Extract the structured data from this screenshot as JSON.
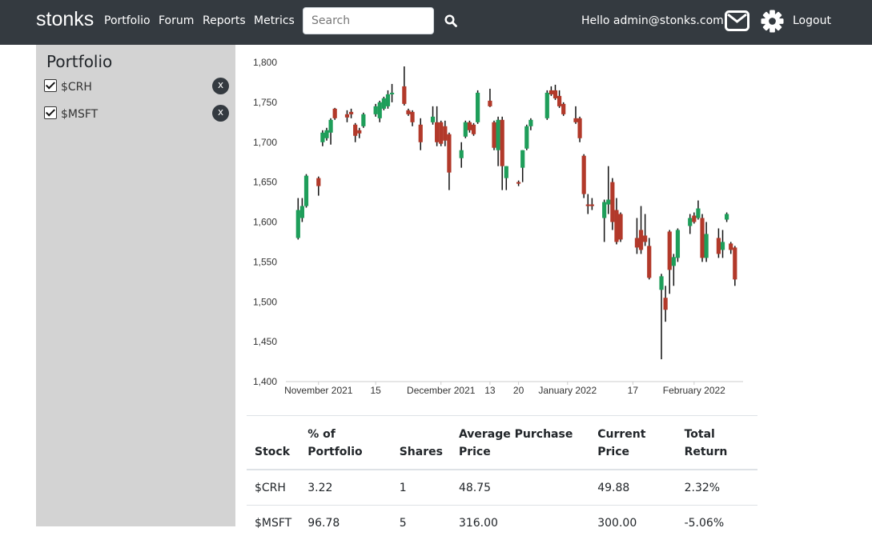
{
  "navbar": {
    "brand": "stonks",
    "links": [
      "Portfolio",
      "Forum",
      "Reports",
      "Metrics"
    ],
    "search_placeholder": "Search",
    "greeting": "Hello admin@stonks.com!",
    "logout": "Logout"
  },
  "sidebar": {
    "title": "Portfolio",
    "items": [
      {
        "label": "$CRH",
        "remove": "x"
      },
      {
        "label": "$MSFT",
        "remove": "x"
      }
    ]
  },
  "chart_data": {
    "type": "candlestick",
    "up_color": "#1e9e5a",
    "down_color": "#b2392a",
    "wick_color": "#111111",
    "xlim": [
      "2021-10-24",
      "2022-02-13"
    ],
    "xticks": [
      {
        "value": "2021-11-01",
        "label": "November 2021"
      },
      {
        "value": "2021-11-15",
        "label": "15"
      },
      {
        "value": "2021-12-01",
        "label": "December 2021"
      },
      {
        "value": "2021-12-13",
        "label": "13"
      },
      {
        "value": "2021-12-20",
        "label": "20"
      },
      {
        "value": "2022-01-01",
        "label": "January 2022"
      },
      {
        "value": "2022-01-17",
        "label": "17"
      },
      {
        "value": "2022-02-01",
        "label": "February 2022"
      }
    ],
    "ylim": [
      1400,
      1800
    ],
    "yticks": [
      {
        "value": 1400,
        "label": "1,400"
      },
      {
        "value": 1450,
        "label": "1,450"
      },
      {
        "value": 1500,
        "label": "1,500"
      },
      {
        "value": 1550,
        "label": "1,550"
      },
      {
        "value": 1600,
        "label": "1,600"
      },
      {
        "value": 1650,
        "label": "1,650"
      },
      {
        "value": 1700,
        "label": "1,700"
      },
      {
        "value": 1750,
        "label": "1,750"
      },
      {
        "value": 1800,
        "label": "1,800"
      }
    ],
    "x": [
      "2021-10-27",
      "2021-10-28",
      "2021-10-29",
      "2021-11-01",
      "2021-11-02",
      "2021-11-03",
      "2021-11-04",
      "2021-11-05",
      "2021-11-08",
      "2021-11-09",
      "2021-11-10",
      "2021-11-11",
      "2021-11-12",
      "2021-11-15",
      "2021-11-16",
      "2021-11-17",
      "2021-11-18",
      "2021-11-19",
      "2021-11-22",
      "2021-11-23",
      "2021-11-24",
      "2021-11-26",
      "2021-11-29",
      "2021-11-30",
      "2021-12-01",
      "2021-12-02",
      "2021-12-03",
      "2021-12-06",
      "2021-12-07",
      "2021-12-08",
      "2021-12-09",
      "2021-12-10",
      "2021-12-13",
      "2021-12-14",
      "2021-12-15",
      "2021-12-16",
      "2021-12-17",
      "2021-12-20",
      "2021-12-21",
      "2021-12-22",
      "2021-12-23",
      "2021-12-27",
      "2021-12-28",
      "2021-12-29",
      "2021-12-30",
      "2021-12-31",
      "2022-01-03",
      "2022-01-04",
      "2022-01-05",
      "2022-01-06",
      "2022-01-07",
      "2022-01-10",
      "2022-01-11",
      "2022-01-12",
      "2022-01-13",
      "2022-01-14",
      "2022-01-18",
      "2022-01-19",
      "2022-01-20",
      "2022-01-21",
      "2022-01-24",
      "2022-01-25",
      "2022-01-26",
      "2022-01-27",
      "2022-01-28",
      "2022-01-31",
      "2022-02-01",
      "2022-02-02",
      "2022-02-03",
      "2022-02-04",
      "2022-02-07",
      "2022-02-08",
      "2022-02-09",
      "2022-02-10",
      "2022-02-11"
    ],
    "open": [
      1580,
      1605,
      1620,
      1655,
      1700,
      1705,
      1712,
      1742,
      1735,
      1738,
      1722,
      1715,
      1720,
      1735,
      1730,
      1742,
      1745,
      1760,
      1770,
      1740,
      1738,
      1722,
      1725,
      1725,
      1725,
      1720,
      1710,
      1680,
      1707,
      1725,
      1722,
      1725,
      1752,
      1725,
      1690,
      1728,
      1655,
      1650,
      1668,
      1692,
      1720,
      1730,
      1765,
      1765,
      1758,
      1748,
      1730,
      1730,
      1683,
      1622,
      1622,
      1605,
      1622,
      1650,
      1615,
      1610,
      1580,
      1590,
      1583,
      1570,
      1515,
      1505,
      1588,
      1545,
      1555,
      1595,
      1608,
      1605,
      1605,
      1555,
      1580,
      1565,
      1603,
      1573,
      1568
    ],
    "high": [
      1630,
      1630,
      1660,
      1657,
      1715,
      1718,
      1730,
      1743,
      1740,
      1742,
      1724,
      1718,
      1737,
      1748,
      1752,
      1757,
      1765,
      1773,
      1795,
      1742,
      1740,
      1730,
      1745,
      1745,
      1727,
      1727,
      1712,
      1700,
      1727,
      1727,
      1724,
      1765,
      1767,
      1727,
      1732,
      1732,
      1670,
      1652,
      1690,
      1722,
      1730,
      1765,
      1770,
      1772,
      1765,
      1750,
      1745,
      1732,
      1685,
      1635,
      1630,
      1628,
      1670,
      1655,
      1630,
      1612,
      1605,
      1620,
      1610,
      1580,
      1535,
      1520,
      1590,
      1560,
      1592,
      1610,
      1612,
      1627,
      1610,
      1600,
      1592,
      1590,
      1612,
      1575,
      1570
    ],
    "low": [
      1578,
      1600,
      1618,
      1633,
      1695,
      1702,
      1697,
      1728,
      1725,
      1730,
      1700,
      1705,
      1718,
      1732,
      1725,
      1740,
      1742,
      1750,
      1746,
      1733,
      1720,
      1690,
      1722,
      1695,
      1695,
      1695,
      1640,
      1668,
      1705,
      1712,
      1708,
      1723,
      1744,
      1690,
      1670,
      1640,
      1640,
      1645,
      1650,
      1690,
      1715,
      1728,
      1758,
      1753,
      1743,
      1733,
      1723,
      1700,
      1630,
      1610,
      1615,
      1575,
      1610,
      1590,
      1572,
      1575,
      1560,
      1560,
      1570,
      1528,
      1428,
      1475,
      1510,
      1520,
      1550,
      1585,
      1598,
      1603,
      1550,
      1550,
      1555,
      1555,
      1600,
      1560,
      1520
    ],
    "close": [
      1615,
      1620,
      1658,
      1645,
      1712,
      1715,
      1728,
      1730,
      1731,
      1735,
      1708,
      1711,
      1735,
      1745,
      1750,
      1755,
      1760,
      1762,
      1748,
      1735,
      1725,
      1700,
      1732,
      1700,
      1698,
      1702,
      1662,
      1690,
      1725,
      1715,
      1710,
      1762,
      1745,
      1693,
      1728,
      1670,
      1670,
      1648,
      1690,
      1720,
      1728,
      1762,
      1760,
      1755,
      1745,
      1735,
      1725,
      1705,
      1635,
      1620,
      1620,
      1625,
      1628,
      1600,
      1575,
      1578,
      1568,
      1565,
      1575,
      1530,
      1532,
      1490,
      1540,
      1556,
      1590,
      1605,
      1600,
      1617,
      1555,
      1585,
      1560,
      1575,
      1610,
      1565,
      1528
    ]
  },
  "table": {
    "headers": [
      "Stock",
      "% of Portfolio",
      "Shares",
      "Average Purchase Price",
      "Current Price",
      "Total Return"
    ],
    "rows": [
      [
        "$CRH",
        "3.22",
        "1",
        "48.75",
        "49.88",
        "2.32%"
      ],
      [
        "$MSFT",
        "96.78",
        "5",
        "316.00",
        "300.00",
        "-5.06%"
      ]
    ]
  }
}
